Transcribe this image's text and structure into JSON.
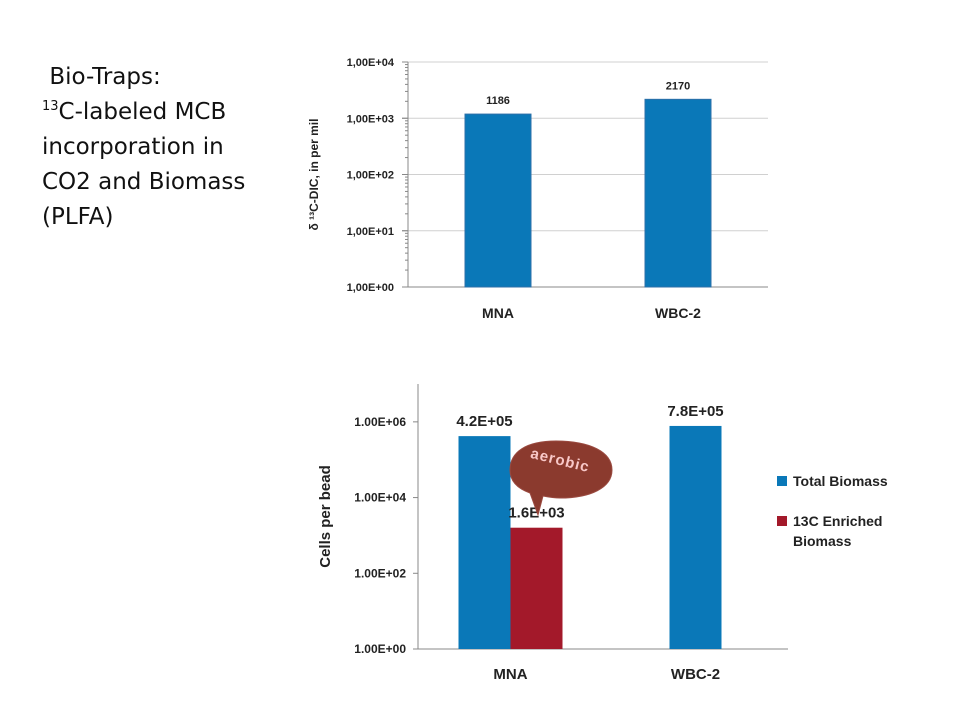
{
  "slide": {
    "title_line1": "Bio-Traps:",
    "title_sup": "13",
    "title_line2": "C-labeled MCB",
    "title_line3": "incorporation in",
    "title_line4": "CO2 and Biomass",
    "title_line5": "(PLFA)"
  },
  "callout": {
    "label": "aerobic",
    "fill": "#8B3A2E"
  },
  "chart_data": [
    {
      "type": "bar",
      "title": "",
      "categories": [
        "MNA",
        "WBC-2"
      ],
      "series": [
        {
          "values": [
            1186,
            2170
          ],
          "color": "#0A78B8"
        }
      ],
      "data_labels": [
        "1186",
        "2170"
      ],
      "ylabel": "δ ¹³C-DIC, in per mil",
      "yscale": "log",
      "ylim": [
        1,
        10000
      ],
      "yticks": [
        "1,00E+00",
        "1,00E+01",
        "1,00E+02",
        "1,00E+03",
        "1,00E+04"
      ],
      "grid": true,
      "legend": "none"
    },
    {
      "type": "bar",
      "title": "",
      "categories": [
        "MNA",
        "WBC-2"
      ],
      "series": [
        {
          "name": "Total Biomass",
          "values": [
            420000,
            780000
          ],
          "color": "#0A78B8"
        },
        {
          "name": "13C Enriched Biomass",
          "values": [
            1600,
            null
          ],
          "color": "#A3192A"
        }
      ],
      "data_labels": [
        [
          "4.2E+05",
          "7.8E+05"
        ],
        [
          "1.6E+03",
          ""
        ]
      ],
      "ylabel": "Cells per bead",
      "yscale": "log",
      "ylim": [
        1,
        10000000
      ],
      "yticks": [
        "1.00E+00",
        "1.00E+02",
        "1.00E+04",
        "1.00E+06"
      ],
      "grid": false,
      "legend": "right"
    }
  ]
}
